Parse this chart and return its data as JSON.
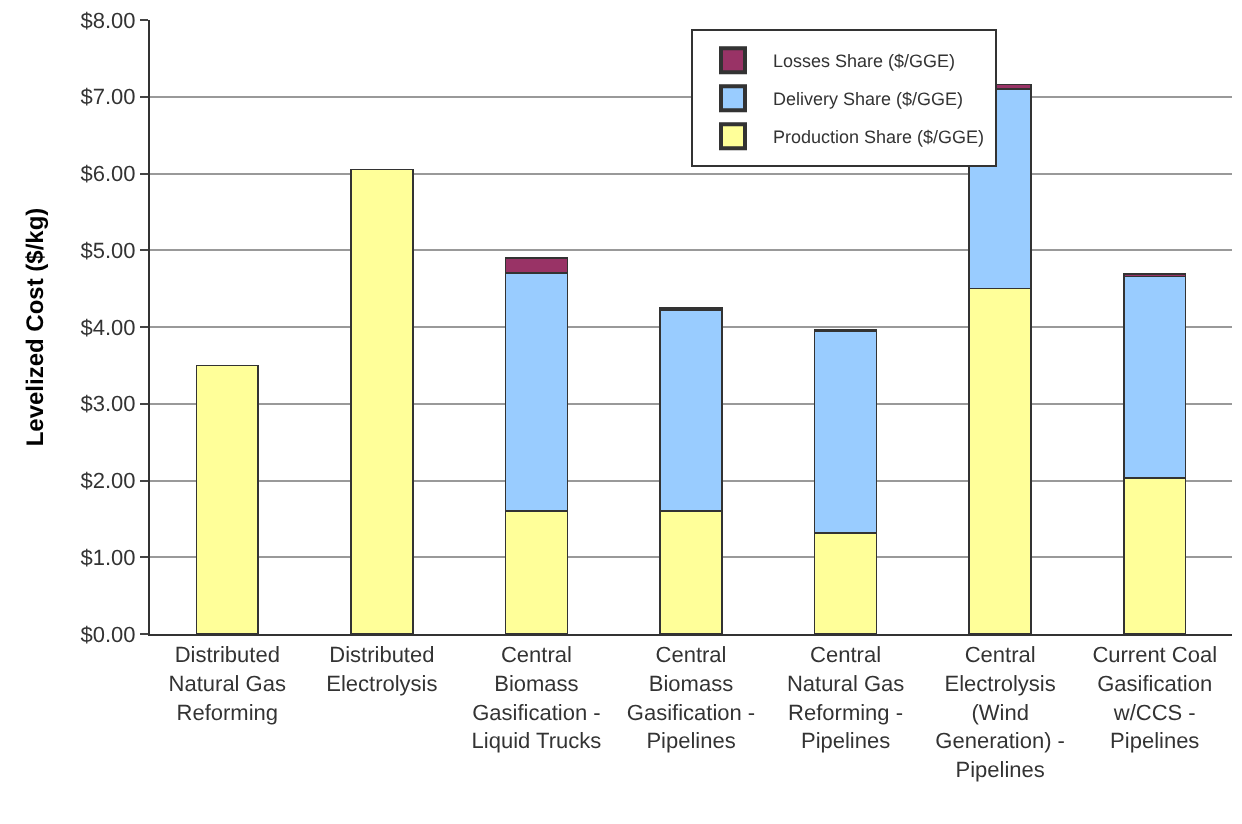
{
  "chart_data": {
    "type": "bar",
    "stacked": true,
    "ylabel": "Levelized Cost ($/kg)",
    "categories": [
      "Distributed\nNatural Gas\nReforming",
      "Distributed\nElectrolysis",
      "Central\nBiomass\nGasification -\nLiquid Trucks",
      "Central\nBiomass\nGasification -\nPipelines",
      "Central\nNatural Gas\nReforming -\nPipelines",
      "Central\nElectrolysis\n(Wind\nGeneration) -\nPipelines",
      "Current Coal\nGasification\nw/CCS -\nPipelines"
    ],
    "series": [
      {
        "name": "Production Share ($/GGE)",
        "color": "#ffff99",
        "values": [
          3.5,
          6.05,
          1.6,
          1.6,
          1.32,
          4.5,
          2.03
        ]
      },
      {
        "name": "Delivery Share ($/GGE)",
        "color": "#99ccff",
        "values": [
          null,
          null,
          3.1,
          2.62,
          2.62,
          2.6,
          2.63
        ]
      },
      {
        "name": "Losses Share ($/GGE)",
        "color": "#993366",
        "values": [
          null,
          null,
          0.2,
          0.03,
          0.02,
          0.06,
          0.03
        ]
      }
    ],
    "ylim": [
      0,
      8
    ],
    "yticks": [
      {
        "value": 0,
        "label": "$0.00"
      },
      {
        "value": 1,
        "label": "$1.00"
      },
      {
        "value": 2,
        "label": "$2.00"
      },
      {
        "value": 3,
        "label": "$3.00"
      },
      {
        "value": 4,
        "label": "$4.00"
      },
      {
        "value": 5,
        "label": "$5.00"
      },
      {
        "value": 6,
        "label": "$6.00"
      },
      {
        "value": 7,
        "label": "$7.00"
      },
      {
        "value": 8,
        "label": "$8.00"
      }
    ],
    "grid": "y",
    "legend": "top"
  }
}
